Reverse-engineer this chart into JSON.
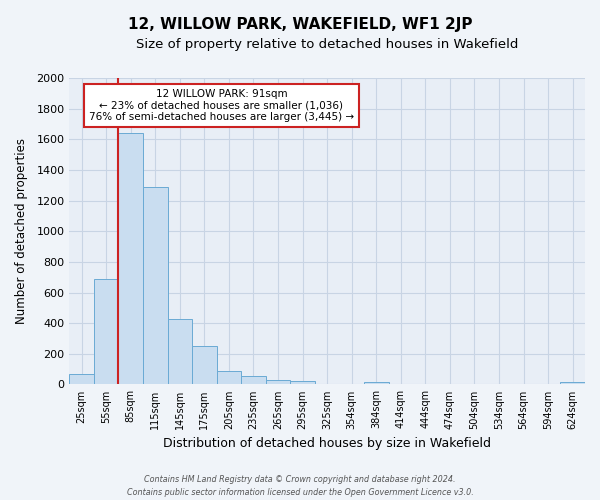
{
  "title": "12, WILLOW PARK, WAKEFIELD, WF1 2JP",
  "subtitle": "Size of property relative to detached houses in Wakefield",
  "xlabel": "Distribution of detached houses by size in Wakefield",
  "ylabel": "Number of detached properties",
  "bar_labels": [
    "25sqm",
    "55sqm",
    "85sqm",
    "115sqm",
    "145sqm",
    "175sqm",
    "205sqm",
    "235sqm",
    "265sqm",
    "295sqm",
    "325sqm",
    "354sqm",
    "384sqm",
    "414sqm",
    "444sqm",
    "474sqm",
    "504sqm",
    "534sqm",
    "564sqm",
    "594sqm",
    "624sqm"
  ],
  "bar_values": [
    70,
    690,
    1640,
    1290,
    430,
    250,
    90,
    55,
    30,
    20,
    0,
    0,
    15,
    0,
    0,
    0,
    0,
    0,
    0,
    0,
    15
  ],
  "bar_color": "#c9ddf0",
  "bar_edge_color": "#6aaad4",
  "ylim": [
    0,
    2000
  ],
  "yticks": [
    0,
    200,
    400,
    600,
    800,
    1000,
    1200,
    1400,
    1600,
    1800,
    2000
  ],
  "property_label": "12 WILLOW PARK: 91sqm",
  "annotation_line1": "← 23% of detached houses are smaller (1,036)",
  "annotation_line2": "76% of semi-detached houses are larger (3,445) →",
  "footer1": "Contains HM Land Registry data © Crown copyright and database right 2024.",
  "footer2": "Contains public sector information licensed under the Open Government Licence v3.0.",
  "background_color": "#f0f4f9",
  "plot_background": "#e8eef6",
  "grid_color": "#c8d4e4",
  "title_fontsize": 11,
  "subtitle_fontsize": 9.5
}
